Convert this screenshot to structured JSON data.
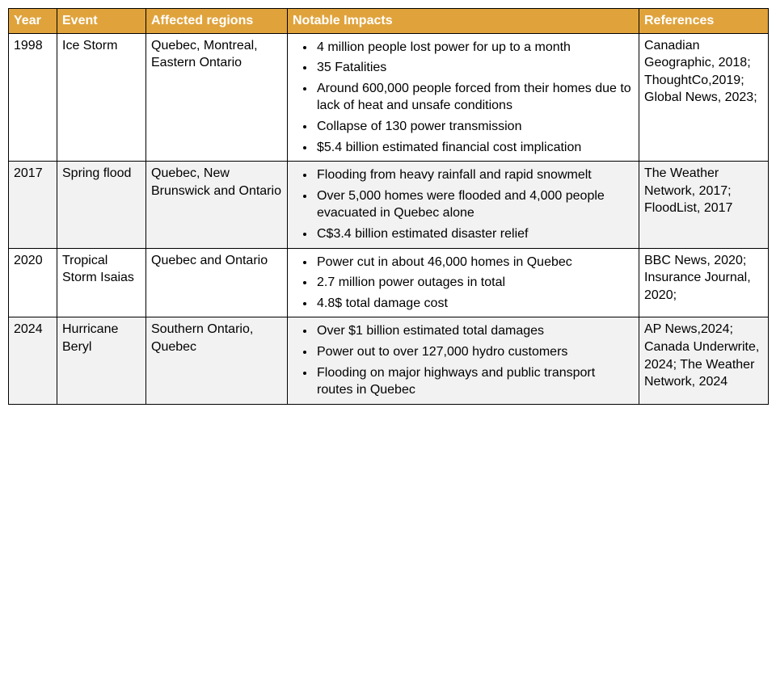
{
  "table": {
    "header_bg": "#e0a33c",
    "header_color": "#ffffff",
    "shaded_bg": "#f2f2f2",
    "columns": [
      {
        "label": "Year",
        "key": "year"
      },
      {
        "label": "Event",
        "key": "event"
      },
      {
        "label": "Affected regions",
        "key": "regions"
      },
      {
        "label": "Notable Impacts",
        "key": "impacts"
      },
      {
        "label": "References",
        "key": "refs"
      }
    ],
    "rows": [
      {
        "shaded": false,
        "year": "1998",
        "event": "Ice Storm",
        "regions": "Quebec, Montreal, Eastern Ontario",
        "impacts": [
          "4 million people lost power for up to a month",
          "35 Fatalities",
          "Around 600,000 people forced from their homes due to lack of heat and unsafe conditions",
          "Collapse of 130 power transmission",
          "$5.4 billion estimated financial cost implication"
        ],
        "refs": "Canadian Geographic, 2018; ThoughtCo,2019; Global News, 2023;"
      },
      {
        "shaded": true,
        "year": "2017",
        "event": "Spring flood",
        "regions": "Quebec, New Brunswick and Ontario",
        "impacts": [
          "Flooding from heavy rainfall and rapid snowmelt",
          "Over 5,000 homes were flooded and 4,000 people evacuated in Quebec alone",
          "C$3.4 billion estimated disaster relief"
        ],
        "refs": "The Weather Network, 2017; FloodList, 2017"
      },
      {
        "shaded": false,
        "year": "2020",
        "event": "Tropical Storm Isaias",
        "regions": "Quebec and Ontario",
        "impacts": [
          "Power cut in about 46,000 homes in Quebec",
          "2.7 million power outages in total",
          "4.8$ total damage cost"
        ],
        "refs": "BBC News, 2020; Insurance Journal, 2020;"
      },
      {
        "shaded": true,
        "year": "2024",
        "event": "Hurricane Beryl",
        "regions": "Southern Ontario, Quebec",
        "impacts": [
          "Over $1 billion estimated total damages",
          "Power out to over 127,000 hydro customers",
          "Flooding on major highways and public transport routes in Quebec"
        ],
        "refs": "AP News,2024; Canada Underwrite, 2024; The Weather Network, 2024"
      }
    ]
  }
}
